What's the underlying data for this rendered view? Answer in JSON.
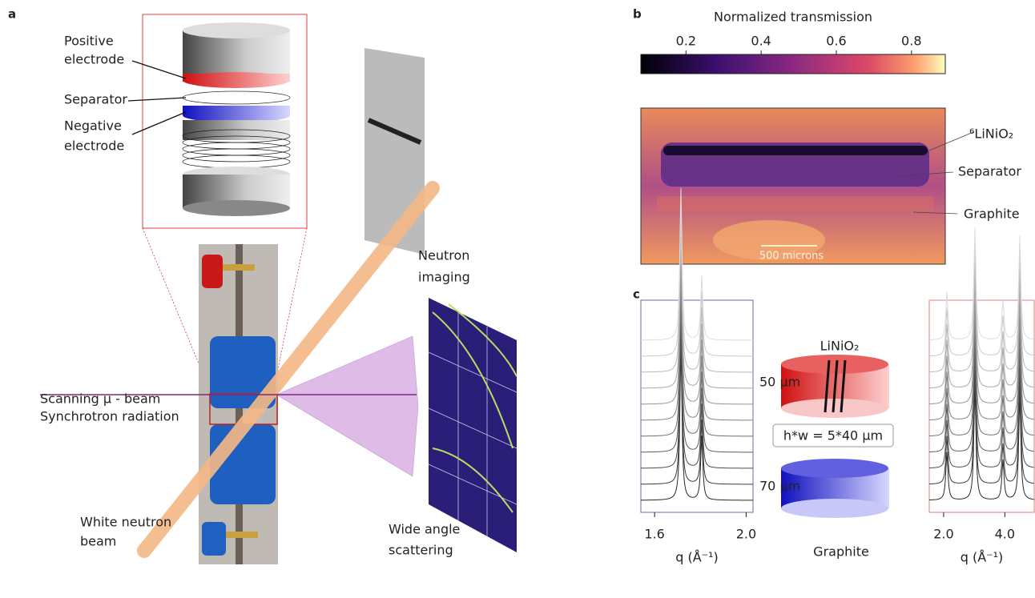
{
  "panel_a": {
    "label": "a",
    "electrode_labels": [
      [
        "Positive",
        "electrode"
      ],
      [
        "Separator"
      ],
      [
        "Negative",
        "electrode"
      ]
    ],
    "neutron_imaging": [
      "Neutron",
      "imaging"
    ],
    "beam": [
      "Scanning μ - beam",
      "Synchrotron radiation"
    ],
    "white_beam": [
      "White neutron",
      "beam"
    ],
    "scattering": [
      "Wide angle",
      "scattering"
    ]
  },
  "panel_b": {
    "label": "b",
    "colorbar": {
      "title": "Normalized transmission",
      "lim": [
        0.08,
        0.89
      ],
      "ticks": [
        0.2,
        0.4,
        0.6,
        0.8
      ]
    },
    "annotations": [
      "⁶LiNiO₂",
      "Separator",
      "Graphite"
    ],
    "scale_bar": "500 microns"
  },
  "panel_c": {
    "label": "c",
    "left_plot": {
      "xlim": [
        1.54,
        2.03
      ],
      "xticks": [
        1.6,
        {
          "value": 2,
          "label": "2.0"
        }
      ],
      "xlabel": "q (Å⁻¹)"
    },
    "right_plot": {
      "xlim": [
        1.53,
        4.96
      ],
      "xticks": [
        {
          "value": 2,
          "label": "2.0"
        },
        {
          "value": 4,
          "label": "4.0"
        }
      ],
      "xlabel": "q (Å⁻¹)"
    },
    "schematic": {
      "top_label": "LiNiO₂",
      "top_thickness": "50 µm",
      "beam_size": "h*w = 5*40 µm",
      "bottom_thickness": "70 µm",
      "bottom_label": "Graphite"
    }
  }
}
